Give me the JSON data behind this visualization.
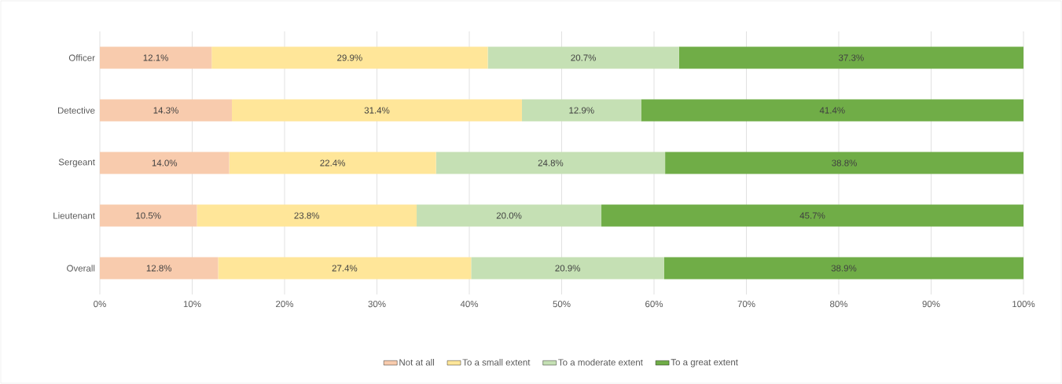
{
  "chart_data": {
    "type": "bar",
    "orientation": "horizontal",
    "stacked": true,
    "categories": [
      "Officer",
      "Detective",
      "Sergeant",
      "Lieutenant",
      "Overall"
    ],
    "series": [
      {
        "name": "Not at all",
        "color": "#f8cbad",
        "values": [
          12.1,
          14.3,
          14.0,
          10.5,
          12.8
        ],
        "value_labels": [
          "12.1%",
          "14.3%",
          "14.0%",
          "10.5%",
          "12.8%"
        ]
      },
      {
        "name": "To a small extent",
        "color": "#ffe699",
        "values": [
          29.9,
          31.4,
          22.4,
          23.8,
          27.4
        ],
        "value_labels": [
          "29.9%",
          "31.4%",
          "22.4%",
          "23.8%",
          "27.4%"
        ]
      },
      {
        "name": "To a moderate extent",
        "color": "#c5e0b4",
        "values": [
          20.7,
          12.9,
          24.8,
          20.0,
          20.9
        ],
        "value_labels": [
          "20.7%",
          "12.9%",
          "24.8%",
          "20.0%",
          "20.9%"
        ]
      },
      {
        "name": "To a great extent",
        "color": "#70ad47",
        "values": [
          37.3,
          41.4,
          38.8,
          45.7,
          38.9
        ],
        "value_labels": [
          "37.3%",
          "41.4%",
          "38.8%",
          "45.7%",
          "38.9%"
        ]
      }
    ],
    "xlim": [
      0,
      100
    ],
    "xticks": [
      {
        "value": 0,
        "label": "0%"
      },
      {
        "value": 10,
        "label": "10%"
      },
      {
        "value": 20,
        "label": "20%"
      },
      {
        "value": 30,
        "label": "30%"
      },
      {
        "value": 40,
        "label": "40%"
      },
      {
        "value": 50,
        "label": "50%"
      },
      {
        "value": 60,
        "label": "60%"
      },
      {
        "value": 70,
        "label": "70%"
      },
      {
        "value": 80,
        "label": "80%"
      },
      {
        "value": 90,
        "label": "90%"
      },
      {
        "value": 100,
        "label": "100%"
      }
    ],
    "grid": "x",
    "legend": "bottom"
  }
}
